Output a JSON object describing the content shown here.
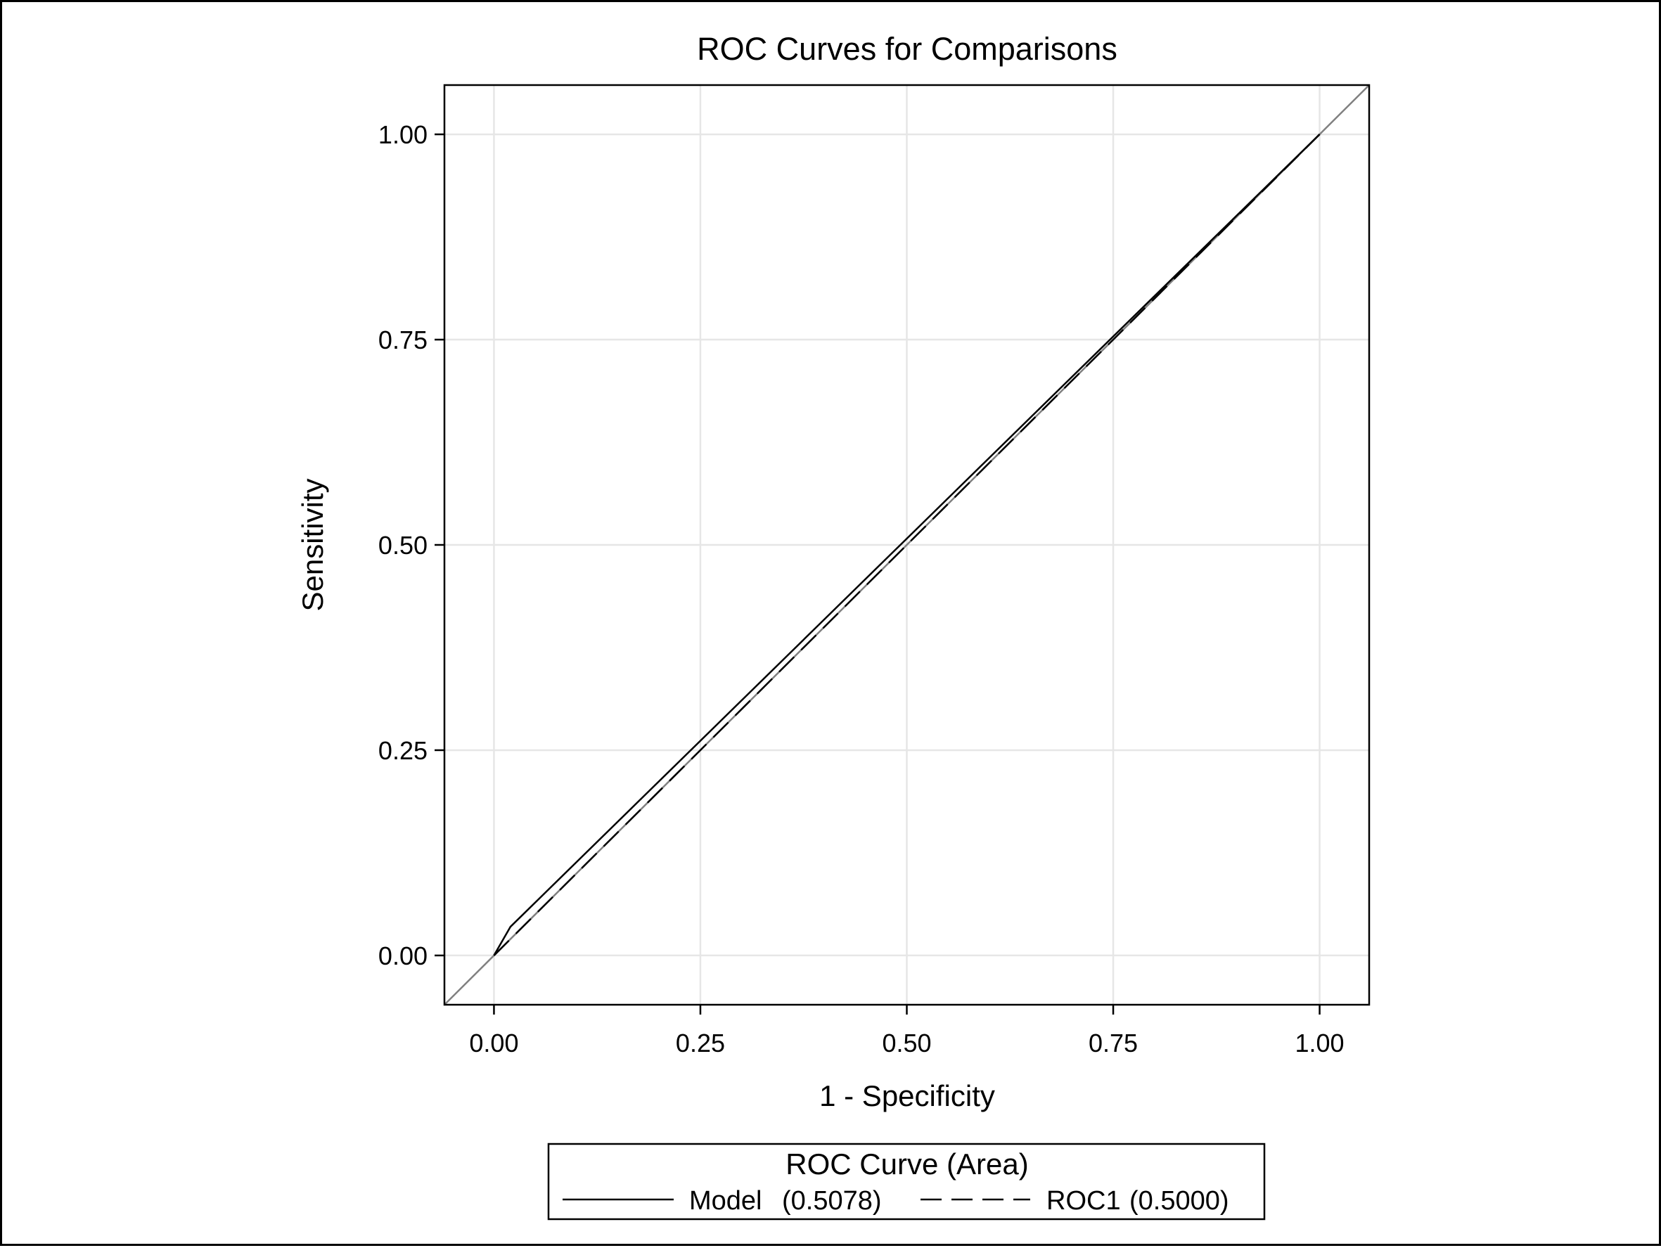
{
  "chart_data": {
    "type": "line",
    "title": "ROC Curves for Comparisons",
    "xlabel": "1 - Specificity",
    "ylabel": "Sensitivity",
    "xlim": [
      -0.06,
      1.06
    ],
    "ylim": [
      -0.06,
      1.06
    ],
    "x_ticks": [
      "0.00",
      "0.25",
      "0.50",
      "0.75",
      "1.00"
    ],
    "y_ticks": [
      "0.00",
      "0.25",
      "0.50",
      "0.75",
      "1.00"
    ],
    "grid": true,
    "reference_line": {
      "style": "diagonal",
      "color": "#808080"
    },
    "legend": {
      "title": "ROC Curve (Area)",
      "placement": "bottom-center"
    },
    "series": [
      {
        "name": "Model",
        "area": "(0.5078)",
        "line_style": "solid",
        "color": "#000000",
        "x": [
          0.0,
          0.02,
          1.0
        ],
        "y": [
          0.0,
          0.035,
          1.0
        ]
      },
      {
        "name": "ROC1",
        "area": "(0.5000)",
        "line_style": "dashed",
        "color": "#000000",
        "x": [
          0.0,
          1.0
        ],
        "y": [
          0.0,
          1.0
        ]
      }
    ]
  }
}
